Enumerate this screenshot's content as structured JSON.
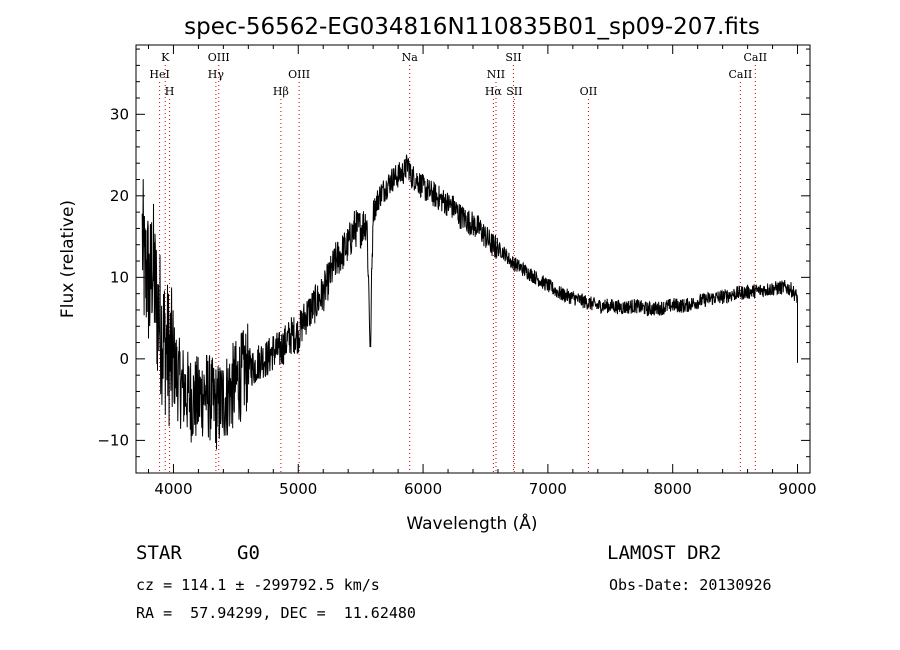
{
  "chart_data": {
    "type": "line",
    "title": "spec-56562-EG034816N110835B01_sp09-207.fits",
    "xlabel": "Wavelength (Å)",
    "ylabel": "Flux (relative)",
    "xlim": [
      3700,
      9100
    ],
    "ylim": [
      -14,
      38.5
    ],
    "xticks": [
      4000,
      5000,
      6000,
      7000,
      8000,
      9000
    ],
    "yticks": [
      -10,
      0,
      10,
      20,
      30
    ],
    "grid": false,
    "line_color": "#000000",
    "marker_color": "#cc0000",
    "spectrum": {
      "x": [
        3750,
        3770,
        3790,
        3810,
        3830,
        3850,
        3870,
        3890,
        3910,
        3930,
        3950,
        3980,
        4010,
        4050,
        4100,
        4150,
        4200,
        4250,
        4300,
        4350,
        4400,
        4450,
        4500,
        4550,
        4600,
        4650,
        4700,
        4750,
        4800,
        4850,
        4900,
        4950,
        5000,
        5050,
        5100,
        5150,
        5200,
        5250,
        5300,
        5350,
        5400,
        5450,
        5500,
        5550,
        5577,
        5600,
        5650,
        5700,
        5750,
        5800,
        5850,
        5880,
        5900,
        5950,
        6000,
        6050,
        6100,
        6150,
        6200,
        6250,
        6300,
        6350,
        6400,
        6450,
        6500,
        6550,
        6600,
        6650,
        6700,
        6750,
        6800,
        6850,
        6900,
        6950,
        7000,
        7100,
        7200,
        7300,
        7400,
        7500,
        7600,
        7700,
        7800,
        7900,
        8000,
        8100,
        8200,
        8300,
        8400,
        8500,
        8600,
        8700,
        8800,
        8900,
        8950,
        9000
      ],
      "y": [
        15,
        10,
        11,
        8,
        12,
        9,
        6,
        5,
        3,
        2,
        1,
        0,
        -1,
        -3,
        -4,
        -5,
        -5,
        -4,
        -5,
        -6,
        -5,
        -4,
        -3,
        -2,
        -1,
        -1,
        0,
        0,
        1,
        1,
        2,
        3,
        3,
        5,
        6,
        7,
        8,
        10,
        12,
        13,
        14,
        16,
        16,
        17,
        1.5,
        18,
        20,
        21,
        22,
        22.5,
        23,
        24,
        22.5,
        22,
        21,
        20.5,
        20,
        19.5,
        19,
        18.5,
        17.5,
        17,
        16.5,
        16,
        15,
        14,
        13.5,
        13,
        12,
        11.5,
        11,
        10.5,
        10,
        9.5,
        9,
        8,
        7.5,
        7,
        6.5,
        6.5,
        6.3,
        6.5,
        6.1,
        6.2,
        6.6,
        6.5,
        7,
        7.4,
        7.6,
        8,
        8.2,
        8.4,
        8.6,
        8.8,
        8.5,
        7.5
      ]
    },
    "line_markers": [
      {
        "label": "K",
        "x": 3934,
        "row": 0
      },
      {
        "label": "HeI",
        "x": 3889,
        "row": 1
      },
      {
        "label": "H",
        "x": 3969,
        "row": 2
      },
      {
        "label": "OIII",
        "x": 4363,
        "row": 0
      },
      {
        "label": "Hγ",
        "x": 4340,
        "row": 1
      },
      {
        "label": "OIII",
        "x": 5007,
        "row": 1
      },
      {
        "label": "Hβ",
        "x": 4861,
        "row": 2
      },
      {
        "label": "Na",
        "x": 5893,
        "row": 0
      },
      {
        "label": "SII",
        "x": 6724,
        "row": 0
      },
      {
        "label": "NII",
        "x": 6584,
        "row": 1
      },
      {
        "label": "Hα",
        "x": 6563,
        "row": 2
      },
      {
        "label": "SII",
        "x": 6731,
        "row": 2
      },
      {
        "label": "OII",
        "x": 7325,
        "row": 2
      },
      {
        "label": "CaII",
        "x": 8662,
        "row": 0
      },
      {
        "label": "CaII",
        "x": 8542,
        "row": 1
      }
    ]
  },
  "info": {
    "object_class": "STAR",
    "subclass": "G0",
    "survey": "LAMOST DR2",
    "redshift_line": "cz = 114.1 ± -299792.5 km/s",
    "obs_date_line": "Obs-Date: 20130926",
    "coords_line": "RA =  57.94299, DEC =  11.62480"
  }
}
